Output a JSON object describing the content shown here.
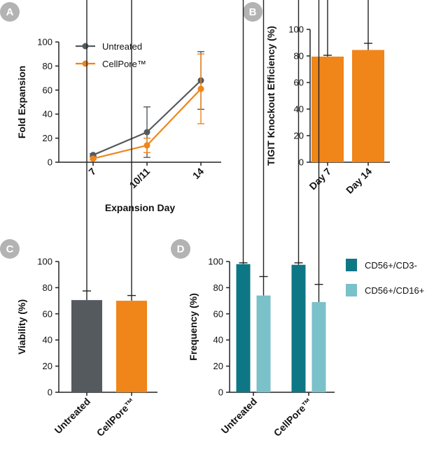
{
  "colors": {
    "untreated": "#555a5e",
    "cellpore": "#f08519",
    "cd56_cd3": "#0e7785",
    "cd56_cd16": "#7bc1c9",
    "badge": "#b3b3b3"
  },
  "chart_data": [
    {
      "panel": "A",
      "type": "line",
      "x": [
        "7",
        "10/11",
        "14"
      ],
      "xlabel": "Expansion Day",
      "ylabel": "Fold Expansion",
      "ylim": [
        0,
        100
      ],
      "yticks": [
        0,
        20,
        40,
        60,
        80,
        100
      ],
      "legend": "top-left",
      "series": [
        {
          "name": "Untreated",
          "color_key": "untreated",
          "values": [
            6,
            25,
            68
          ],
          "errors": [
            1,
            21,
            24
          ]
        },
        {
          "name": "CellPore™",
          "color_key": "cellpore",
          "values": [
            3,
            14,
            61
          ],
          "errors": [
            1,
            6,
            29
          ]
        }
      ]
    },
    {
      "panel": "B",
      "type": "bar",
      "categories": [
        "Day 7",
        "Day 14"
      ],
      "xlabel": "",
      "ylabel": "TIGIT Knockout Efficiency (%)",
      "ylim": [
        0,
        100
      ],
      "yticks": [
        0,
        20,
        40,
        60,
        80,
        100
      ],
      "series": [
        {
          "name": "",
          "color_key": "cellpore",
          "values": [
            79.5,
            84.5
          ],
          "errors": [
            1,
            5
          ]
        }
      ]
    },
    {
      "panel": "C",
      "type": "bar",
      "categories": [
        "Untreated",
        "CellPore™"
      ],
      "xlabel": "",
      "ylabel": "Viability (%)",
      "ylim": [
        0,
        100
      ],
      "yticks": [
        0,
        20,
        40,
        60,
        80,
        100
      ],
      "series": [
        {
          "name": "",
          "color_keys": [
            "untreated",
            "cellpore"
          ],
          "values": [
            70.5,
            70
          ],
          "errors": [
            7,
            4
          ]
        }
      ]
    },
    {
      "panel": "D",
      "type": "bar",
      "categories": [
        "Untreated",
        "CellPore™"
      ],
      "xlabel": "",
      "ylabel": "Frequency (%)",
      "ylim": [
        0,
        100
      ],
      "yticks": [
        0,
        20,
        40,
        60,
        80,
        100
      ],
      "legend": "right",
      "series": [
        {
          "name": "CD56+/CD3-",
          "color_key": "cd56_cd3",
          "values": [
            98,
            97.5
          ],
          "errors": [
            1,
            1.5
          ]
        },
        {
          "name": "CD56+/CD16+",
          "color_key": "cd56_cd16",
          "values": [
            74,
            69
          ],
          "errors": [
            14.5,
            13.5
          ]
        }
      ]
    }
  ]
}
